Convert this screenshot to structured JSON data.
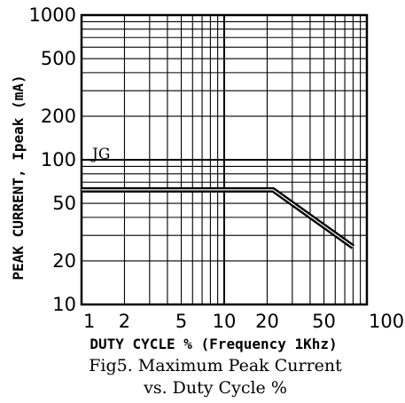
{
  "chart_data": {
    "type": "line",
    "caption": [
      "Fig5. Maximum Peak Current",
      "vs. Duty Cycle %"
    ],
    "xlabel": "DUTY CYCLE % (Frequency 1Khz)",
    "ylabel": "PEAK CURRENT, Ipeak (mA)",
    "x_scale": "log",
    "y_scale": "log",
    "xlim": [
      1,
      100
    ],
    "ylim": [
      10,
      1000
    ],
    "grid": true,
    "x_ticks": [
      {
        "value": 1,
        "label": "1"
      },
      {
        "value": 2,
        "label": "2"
      },
      {
        "value": 5,
        "label": "5"
      },
      {
        "value": 10,
        "label": "10"
      },
      {
        "value": 20,
        "label": "20"
      },
      {
        "value": 50,
        "label": "50"
      },
      {
        "value": 100,
        "label": "100"
      }
    ],
    "y_ticks": [
      {
        "value": 1000,
        "label": "1000"
      },
      {
        "value": 500,
        "label": "500"
      },
      {
        "value": 200,
        "label": "200"
      },
      {
        "value": 100,
        "label": "100"
      },
      {
        "value": 50,
        "label": "50"
      },
      {
        "value": 20,
        "label": "20"
      },
      {
        "value": 10,
        "label": "10"
      }
    ],
    "series": [
      {
        "x": [
          1,
          22,
          80
        ],
        "y": [
          62,
          62,
          25
        ],
        "label": "JG"
      }
    ]
  }
}
